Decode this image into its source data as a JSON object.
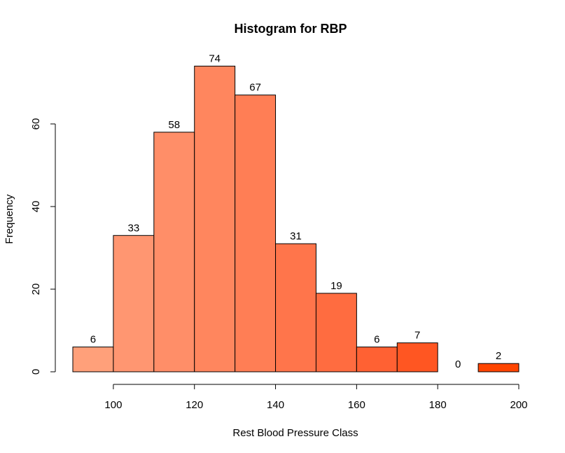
{
  "chart_data": {
    "type": "bar",
    "title": "Histogram for RBP",
    "xlabel": "Rest Blood Pressure Class",
    "ylabel": "Frequency",
    "bins": [
      {
        "start": 90,
        "end": 100,
        "count": 6,
        "label": "6",
        "color": "#FFA07A"
      },
      {
        "start": 100,
        "end": 110,
        "count": 33,
        "label": "33",
        "color": "#FF9671"
      },
      {
        "start": 110,
        "end": 120,
        "count": 58,
        "label": "58",
        "color": "#FF8E68"
      },
      {
        "start": 120,
        "end": 130,
        "count": 74,
        "label": "74",
        "color": "#FF865E"
      },
      {
        "start": 130,
        "end": 140,
        "count": 67,
        "label": "67",
        "color": "#FF7E55"
      },
      {
        "start": 140,
        "end": 150,
        "count": 31,
        "label": "31",
        "color": "#FF754B"
      },
      {
        "start": 150,
        "end": 160,
        "count": 19,
        "label": "19",
        "color": "#FF6C40"
      },
      {
        "start": 160,
        "end": 170,
        "count": 6,
        "label": "6",
        "color": "#FF6133"
      },
      {
        "start": 170,
        "end": 180,
        "count": 7,
        "label": "7",
        "color": "#FF5622"
      },
      {
        "start": 180,
        "end": 190,
        "count": 0,
        "label": "0",
        "color": "#FF4F1A"
      },
      {
        "start": 190,
        "end": 200,
        "count": 2,
        "label": "2",
        "color": "#FF4500"
      }
    ],
    "xticks": [
      {
        "value": 100,
        "label": "100"
      },
      {
        "value": 120,
        "label": "120"
      },
      {
        "value": 140,
        "label": "140"
      },
      {
        "value": 160,
        "label": "160"
      },
      {
        "value": 180,
        "label": "180"
      },
      {
        "value": 200,
        "label": "200"
      }
    ],
    "yticks": [
      {
        "value": 0,
        "label": "0"
      },
      {
        "value": 20,
        "label": "20"
      },
      {
        "value": 40,
        "label": "40"
      },
      {
        "value": 60,
        "label": "60"
      }
    ],
    "xlim": [
      90,
      200
    ],
    "ylim": [
      0,
      74
    ],
    "grid": false,
    "bar_border_color": "#000000"
  }
}
